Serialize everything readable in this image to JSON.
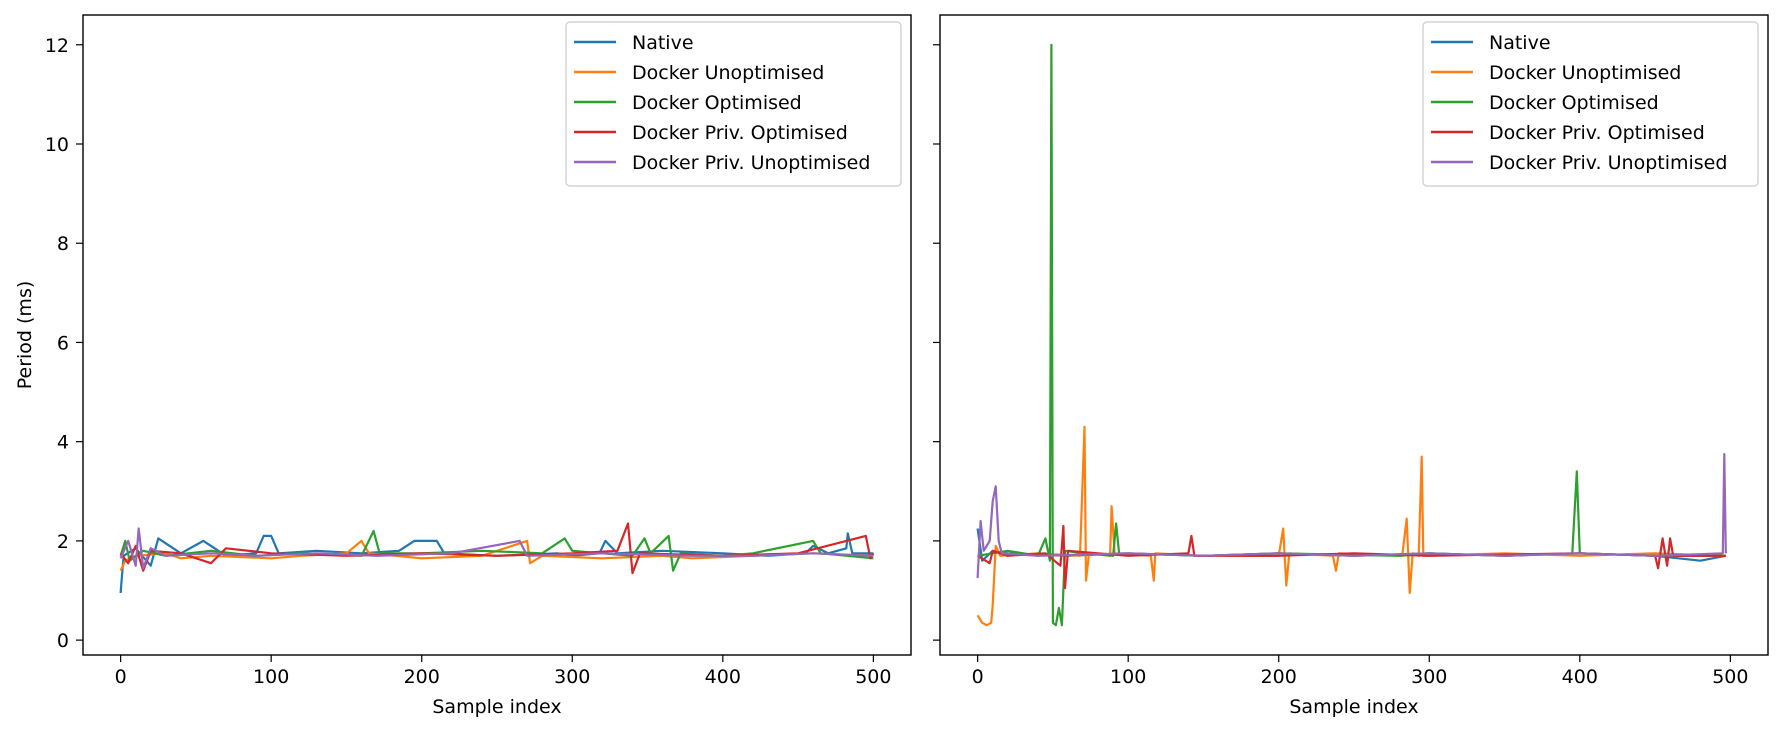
{
  "chart_data": [
    {
      "type": "line",
      "xlabel": "Sample index",
      "ylabel": "Period (ms)",
      "xlim": [
        -25,
        525
      ],
      "ylim": [
        -0.3,
        12.6
      ],
      "xticks": [
        0,
        100,
        200,
        300,
        400,
        500
      ],
      "yticks": [
        0,
        2,
        4,
        6,
        8,
        10,
        12
      ],
      "legend_position": "top-right",
      "series": [
        {
          "name": "Native",
          "color": "#1f77b4",
          "points": [
            [
              0,
              0.95
            ],
            [
              2,
              1.7
            ],
            [
              10,
              1.85
            ],
            [
              20,
              1.5
            ],
            [
              25,
              2.05
            ],
            [
              40,
              1.75
            ],
            [
              55,
              2.0
            ],
            [
              70,
              1.7
            ],
            [
              90,
              1.75
            ],
            [
              95,
              2.1
            ],
            [
              100,
              2.1
            ],
            [
              105,
              1.75
            ],
            [
              130,
              1.8
            ],
            [
              160,
              1.75
            ],
            [
              185,
              1.8
            ],
            [
              195,
              2.0
            ],
            [
              210,
              2.0
            ],
            [
              215,
              1.75
            ],
            [
              250,
              1.7
            ],
            [
              290,
              1.75
            ],
            [
              300,
              1.7
            ],
            [
              318,
              1.75
            ],
            [
              322,
              2.0
            ],
            [
              330,
              1.75
            ],
            [
              360,
              1.8
            ],
            [
              400,
              1.75
            ],
            [
              430,
              1.7
            ],
            [
              455,
              1.75
            ],
            [
              460,
              1.9
            ],
            [
              470,
              1.75
            ],
            [
              482,
              1.85
            ],
            [
              483,
              2.15
            ],
            [
              486,
              1.75
            ],
            [
              500,
              1.75
            ]
          ]
        },
        {
          "name": "Docker Unoptimised",
          "color": "#ff7f0e",
          "points": [
            [
              0,
              1.4
            ],
            [
              3,
              1.6
            ],
            [
              10,
              1.7
            ],
            [
              30,
              1.75
            ],
            [
              40,
              1.65
            ],
            [
              60,
              1.7
            ],
            [
              100,
              1.65
            ],
            [
              120,
              1.7
            ],
            [
              150,
              1.75
            ],
            [
              160,
              2.0
            ],
            [
              165,
              1.75
            ],
            [
              200,
              1.65
            ],
            [
              240,
              1.7
            ],
            [
              270,
              2.0
            ],
            [
              272,
              1.55
            ],
            [
              280,
              1.7
            ],
            [
              320,
              1.65
            ],
            [
              360,
              1.7
            ],
            [
              380,
              1.65
            ],
            [
              420,
              1.7
            ],
            [
              460,
              1.75
            ],
            [
              500,
              1.7
            ]
          ]
        },
        {
          "name": "Docker Optimised",
          "color": "#2ca02c",
          "points": [
            [
              0,
              1.7
            ],
            [
              3,
              2.0
            ],
            [
              6,
              1.6
            ],
            [
              15,
              1.8
            ],
            [
              30,
              1.7
            ],
            [
              60,
              1.8
            ],
            [
              90,
              1.7
            ],
            [
              120,
              1.75
            ],
            [
              160,
              1.7
            ],
            [
              168,
              2.2
            ],
            [
              172,
              1.75
            ],
            [
              200,
              1.75
            ],
            [
              240,
              1.8
            ],
            [
              280,
              1.75
            ],
            [
              295,
              2.05
            ],
            [
              300,
              1.8
            ],
            [
              320,
              1.75
            ],
            [
              340,
              1.7
            ],
            [
              348,
              2.05
            ],
            [
              352,
              1.75
            ],
            [
              364,
              2.1
            ],
            [
              367,
              1.4
            ],
            [
              372,
              1.75
            ],
            [
              400,
              1.7
            ],
            [
              420,
              1.75
            ],
            [
              460,
              2.0
            ],
            [
              465,
              1.75
            ],
            [
              500,
              1.65
            ]
          ]
        },
        {
          "name": "Docker Priv. Optimised",
          "color": "#d62728",
          "points": [
            [
              0,
              1.75
            ],
            [
              5,
              1.55
            ],
            [
              10,
              1.9
            ],
            [
              15,
              1.4
            ],
            [
              20,
              1.8
            ],
            [
              40,
              1.75
            ],
            [
              60,
              1.55
            ],
            [
              70,
              1.85
            ],
            [
              100,
              1.75
            ],
            [
              150,
              1.7
            ],
            [
              200,
              1.75
            ],
            [
              250,
              1.7
            ],
            [
              300,
              1.75
            ],
            [
              330,
              1.8
            ],
            [
              337,
              2.35
            ],
            [
              340,
              1.35
            ],
            [
              345,
              1.75
            ],
            [
              400,
              1.7
            ],
            [
              450,
              1.75
            ],
            [
              495,
              2.1
            ],
            [
              498,
              1.65
            ],
            [
              500,
              1.75
            ]
          ]
        },
        {
          "name": "Docker Priv. Unoptimised",
          "color": "#9467bd",
          "points": [
            [
              0,
              1.65
            ],
            [
              5,
              2.0
            ],
            [
              10,
              1.5
            ],
            [
              12,
              2.25
            ],
            [
              15,
              1.45
            ],
            [
              20,
              1.85
            ],
            [
              30,
              1.7
            ],
            [
              60,
              1.75
            ],
            [
              90,
              1.7
            ],
            [
              130,
              1.75
            ],
            [
              170,
              1.7
            ],
            [
              220,
              1.75
            ],
            [
              265,
              2.0
            ],
            [
              270,
              1.7
            ],
            [
              320,
              1.75
            ],
            [
              380,
              1.7
            ],
            [
              420,
              1.7
            ],
            [
              460,
              1.75
            ],
            [
              500,
              1.7
            ]
          ]
        }
      ]
    },
    {
      "type": "line",
      "xlabel": "Sample index",
      "ylabel": "",
      "xlim": [
        -25,
        525
      ],
      "ylim": [
        -0.3,
        12.6
      ],
      "xticks": [
        0,
        100,
        200,
        300,
        400,
        500
      ],
      "yticks": [
        0,
        2,
        4,
        6,
        8,
        10,
        12
      ],
      "legend_position": "top-right",
      "series": [
        {
          "name": "Native",
          "color": "#1f77b4",
          "points": [
            [
              0,
              2.25
            ],
            [
              3,
              1.6
            ],
            [
              10,
              1.8
            ],
            [
              20,
              1.75
            ],
            [
              60,
              1.7
            ],
            [
              100,
              1.75
            ],
            [
              150,
              1.7
            ],
            [
              200,
              1.75
            ],
            [
              250,
              1.7
            ],
            [
              300,
              1.75
            ],
            [
              350,
              1.7
            ],
            [
              400,
              1.75
            ],
            [
              450,
              1.7
            ],
            [
              480,
              1.6
            ],
            [
              497,
              1.7
            ]
          ]
        },
        {
          "name": "Docker Unoptimised",
          "color": "#ff7f0e",
          "points": [
            [
              0,
              0.5
            ],
            [
              3,
              0.35
            ],
            [
              6,
              0.3
            ],
            [
              9,
              0.35
            ],
            [
              10,
              0.7
            ],
            [
              12,
              1.9
            ],
            [
              15,
              1.7
            ],
            [
              40,
              1.75
            ],
            [
              68,
              1.7
            ],
            [
              71,
              4.3
            ],
            [
              72,
              1.2
            ],
            [
              74,
              1.75
            ],
            [
              88,
              1.7
            ],
            [
              89,
              2.7
            ],
            [
              91,
              1.75
            ],
            [
              115,
              1.7
            ],
            [
              117,
              1.2
            ],
            [
              118,
              1.75
            ],
            [
              150,
              1.7
            ],
            [
              200,
              1.7
            ],
            [
              203,
              2.25
            ],
            [
              205,
              1.1
            ],
            [
              207,
              1.75
            ],
            [
              236,
              1.7
            ],
            [
              238,
              1.4
            ],
            [
              240,
              1.75
            ],
            [
              282,
              1.7
            ],
            [
              285,
              2.45
            ],
            [
              287,
              0.95
            ],
            [
              289,
              1.75
            ],
            [
              293,
              1.7
            ],
            [
              295,
              3.7
            ],
            [
              296,
              1.7
            ],
            [
              350,
              1.75
            ],
            [
              400,
              1.7
            ],
            [
              450,
              1.75
            ],
            [
              497,
              1.7
            ]
          ]
        },
        {
          "name": "Docker Optimised",
          "color": "#2ca02c",
          "points": [
            [
              0,
              1.7
            ],
            [
              10,
              1.75
            ],
            [
              20,
              1.8
            ],
            [
              40,
              1.7
            ],
            [
              45,
              2.05
            ],
            [
              48,
              1.6
            ],
            [
              49,
              12.0
            ],
            [
              50,
              0.35
            ],
            [
              52,
              0.3
            ],
            [
              54,
              0.65
            ],
            [
              56,
              0.3
            ],
            [
              58,
              1.8
            ],
            [
              70,
              1.75
            ],
            [
              90,
              1.7
            ],
            [
              92,
              2.35
            ],
            [
              94,
              1.75
            ],
            [
              150,
              1.7
            ],
            [
              200,
              1.75
            ],
            [
              280,
              1.7
            ],
            [
              300,
              1.75
            ],
            [
              350,
              1.7
            ],
            [
              395,
              1.75
            ],
            [
              398,
              3.4
            ],
            [
              400,
              1.75
            ],
            [
              450,
              1.7
            ],
            [
              497,
              1.7
            ]
          ]
        },
        {
          "name": "Docker Priv. Optimised",
          "color": "#d62728",
          "points": [
            [
              0,
              1.7
            ],
            [
              8,
              1.55
            ],
            [
              10,
              1.8
            ],
            [
              20,
              1.7
            ],
            [
              45,
              1.75
            ],
            [
              55,
              1.5
            ],
            [
              57,
              2.3
            ],
            [
              58,
              1.05
            ],
            [
              60,
              1.8
            ],
            [
              100,
              1.7
            ],
            [
              140,
              1.75
            ],
            [
              142,
              2.1
            ],
            [
              144,
              1.7
            ],
            [
              200,
              1.7
            ],
            [
              250,
              1.75
            ],
            [
              300,
              1.7
            ],
            [
              400,
              1.75
            ],
            [
              450,
              1.7
            ],
            [
              452,
              1.45
            ],
            [
              455,
              2.05
            ],
            [
              458,
              1.5
            ],
            [
              460,
              2.05
            ],
            [
              462,
              1.7
            ],
            [
              497,
              1.7
            ]
          ]
        },
        {
          "name": "Docker Priv. Unoptimised",
          "color": "#9467bd",
          "points": [
            [
              0,
              1.25
            ],
            [
              2,
              2.4
            ],
            [
              4,
              1.8
            ],
            [
              8,
              2.0
            ],
            [
              10,
              2.8
            ],
            [
              12,
              3.1
            ],
            [
              14,
              2.0
            ],
            [
              16,
              1.75
            ],
            [
              40,
              1.7
            ],
            [
              100,
              1.75
            ],
            [
              150,
              1.7
            ],
            [
              200,
              1.75
            ],
            [
              250,
              1.7
            ],
            [
              300,
              1.75
            ],
            [
              350,
              1.7
            ],
            [
              400,
              1.75
            ],
            [
              450,
              1.7
            ],
            [
              495,
              1.75
            ],
            [
              496,
              3.75
            ],
            [
              497,
              1.75
            ]
          ]
        }
      ]
    }
  ]
}
